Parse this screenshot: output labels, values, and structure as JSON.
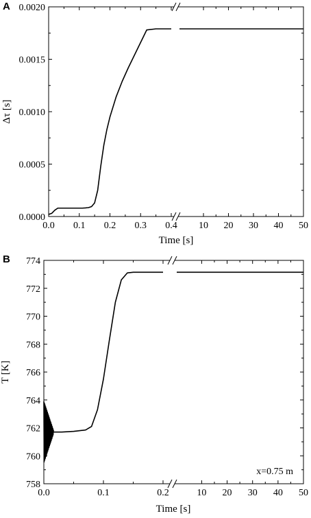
{
  "chart_data": [
    {
      "panel": "A",
      "type": "line",
      "ylabel": "Δτ [s]",
      "xlabel": "Time [s]",
      "ylim": [
        0,
        0.002
      ],
      "yticks": [
        "0.0000",
        "0.0005",
        "0.0010",
        "0.0015",
        "0.0020"
      ],
      "yticks_values": [
        0,
        0.0005,
        0.001,
        0.0015,
        0.002
      ],
      "xbreak": true,
      "left_segment": {
        "xlim": [
          0,
          0.4
        ],
        "xticks": [
          "0.0",
          "0.1",
          "0.2",
          "0.3",
          "0.4"
        ],
        "xticks_values": [
          0,
          0.1,
          0.2,
          0.3,
          0.4
        ]
      },
      "right_segment": {
        "xlim": [
          0.4,
          50
        ],
        "xticks": [
          "10",
          "20",
          "30",
          "40",
          "50"
        ],
        "xticks_values": [
          10,
          20,
          30,
          40,
          50
        ]
      },
      "series": [
        {
          "points": [
            [
              0.0,
              2e-05
            ],
            [
              0.01,
              3e-05
            ],
            [
              0.02,
              6e-05
            ],
            [
              0.03,
              8e-05
            ],
            [
              0.05,
              8e-05
            ],
            [
              0.08,
              8e-05
            ],
            [
              0.11,
              8e-05
            ],
            [
              0.12,
              8.2e-05
            ],
            [
              0.13,
              8.5e-05
            ],
            [
              0.14,
              9.5e-05
            ],
            [
              0.15,
              0.00013
            ],
            [
              0.16,
              0.00025
            ],
            [
              0.17,
              0.00048
            ],
            [
              0.18,
              0.00068
            ],
            [
              0.19,
              0.00083
            ],
            [
              0.2,
              0.00095
            ],
            [
              0.22,
              0.00114
            ],
            [
              0.24,
              0.00129
            ],
            [
              0.26,
              0.00142
            ],
            [
              0.28,
              0.00154
            ],
            [
              0.3,
              0.00166
            ],
            [
              0.32,
              0.00178
            ],
            [
              0.35,
              0.00179
            ],
            [
              0.4,
              0.00179
            ]
          ],
          "points_after_break": [
            [
              0.4,
              0.00179
            ],
            [
              50,
              0.00179
            ]
          ]
        }
      ]
    },
    {
      "panel": "B",
      "type": "line",
      "ylabel": "T [K]",
      "xlabel": "Time [s]",
      "ylim": [
        758,
        774
      ],
      "yticks": [
        "758",
        "760",
        "762",
        "764",
        "766",
        "768",
        "770",
        "772",
        "774"
      ],
      "yticks_values": [
        758,
        760,
        762,
        764,
        766,
        768,
        770,
        772,
        774
      ],
      "xbreak": true,
      "left_segment": {
        "xlim": [
          0,
          0.2
        ],
        "xticks": [
          "0.0",
          "0.1",
          "0.2"
        ],
        "xticks_values": [
          0,
          0.1,
          0.2
        ]
      },
      "right_segment": {
        "xlim": [
          0.2,
          50
        ],
        "xticks": [
          "10",
          "20",
          "30",
          "40",
          "50"
        ],
        "xticks_values": [
          10,
          20,
          30,
          40,
          50
        ]
      },
      "annotation": "x=0.75 m",
      "oscillation": {
        "x_start": 0.0,
        "x_end": 0.016,
        "center": 761.7,
        "amp_start": 2.2,
        "amp_end": 0.15,
        "cycles": 16
      },
      "series": [
        {
          "points": [
            [
              0.016,
              761.7
            ],
            [
              0.02,
              761.7
            ],
            [
              0.03,
              761.7
            ],
            [
              0.05,
              761.75
            ],
            [
              0.07,
              761.85
            ],
            [
              0.08,
              762.1
            ],
            [
              0.09,
              763.3
            ],
            [
              0.1,
              765.5
            ],
            [
              0.11,
              768.3
            ],
            [
              0.12,
              771.0
            ],
            [
              0.13,
              772.6
            ],
            [
              0.14,
              773.1
            ],
            [
              0.15,
              773.15
            ],
            [
              0.2,
              773.15
            ]
          ],
          "points_after_break": [
            [
              0.2,
              773.15
            ],
            [
              50,
              773.15
            ]
          ]
        }
      ]
    }
  ],
  "panels": {
    "a": {
      "label": "A"
    },
    "b": {
      "label": "B"
    }
  }
}
